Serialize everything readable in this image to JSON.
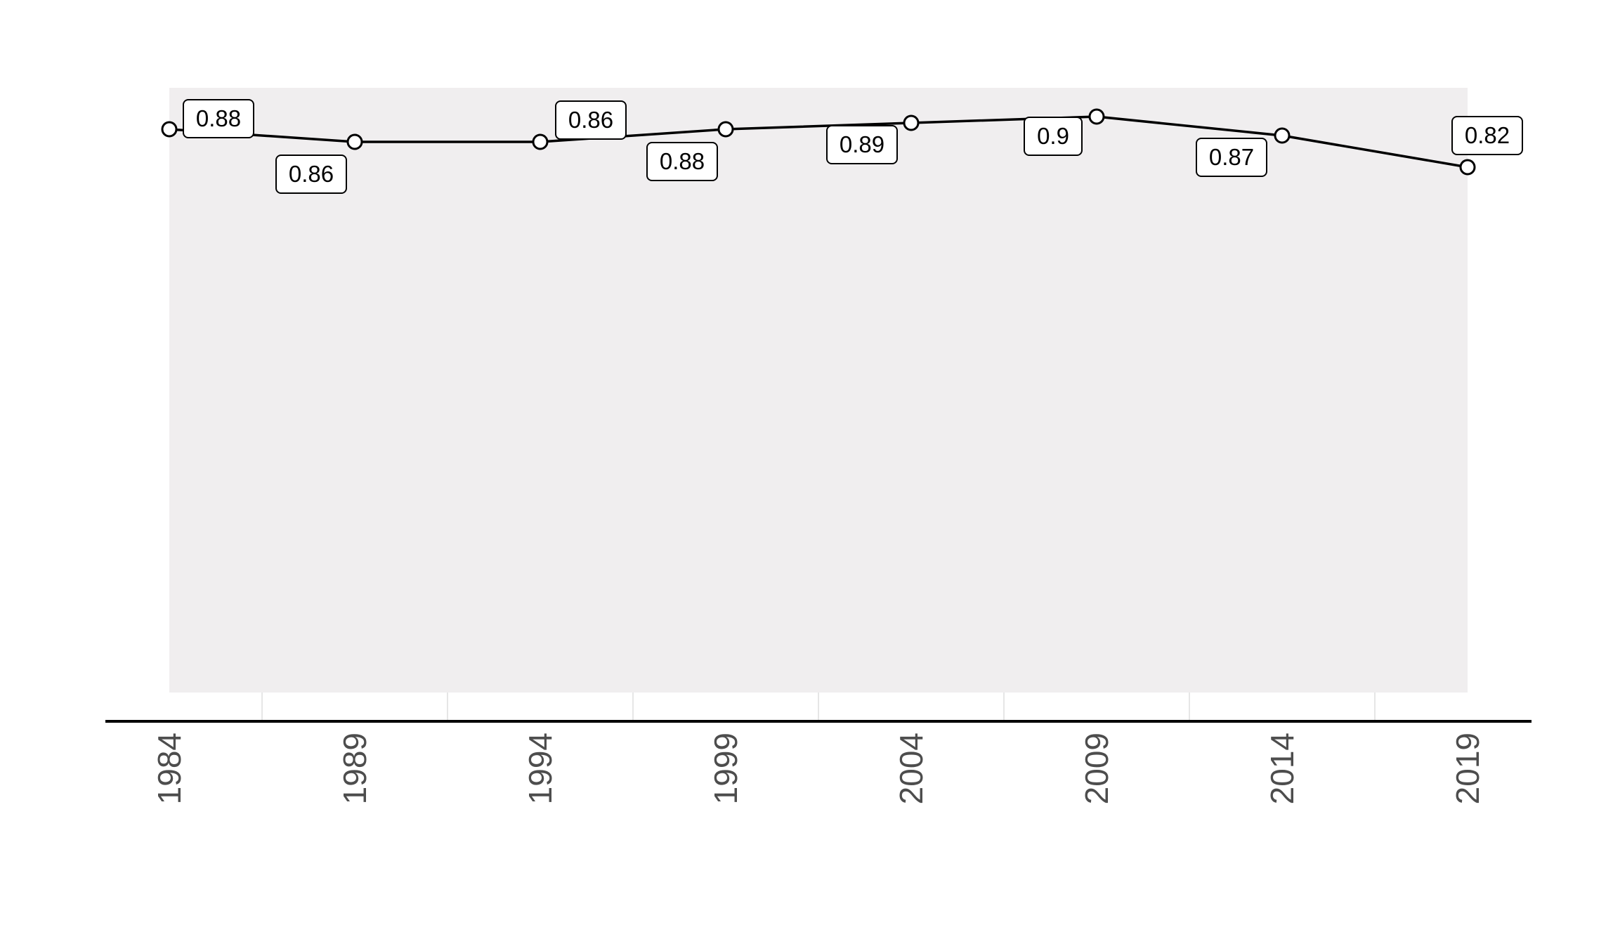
{
  "chart_data": {
    "type": "area",
    "title": "",
    "xlabel": "",
    "ylabel": "",
    "x": [
      1984,
      1989,
      1994,
      1999,
      2004,
      2009,
      2014,
      2019
    ],
    "x_tick_labels": [
      "1984",
      "1989",
      "1994",
      "1999",
      "2004",
      "2009",
      "2014",
      "2019"
    ],
    "series": [
      {
        "values": [
          0.88,
          0.86,
          0.86,
          0.88,
          0.89,
          0.9,
          0.87,
          0.82
        ],
        "labels": [
          "0.88",
          "0.86",
          "0.86",
          "0.88",
          "0.89",
          "0.9",
          "0.87",
          "0.82"
        ],
        "line_color": "#000000",
        "fill_color": "#f0eeef",
        "marker_fill": "#ffffff"
      }
    ],
    "grid": {
      "vertical": true,
      "horizontal": false,
      "color": "#dddddd"
    },
    "axis_color": "#000000",
    "tick_label_color": "#4d4d4d",
    "legend": "none"
  }
}
